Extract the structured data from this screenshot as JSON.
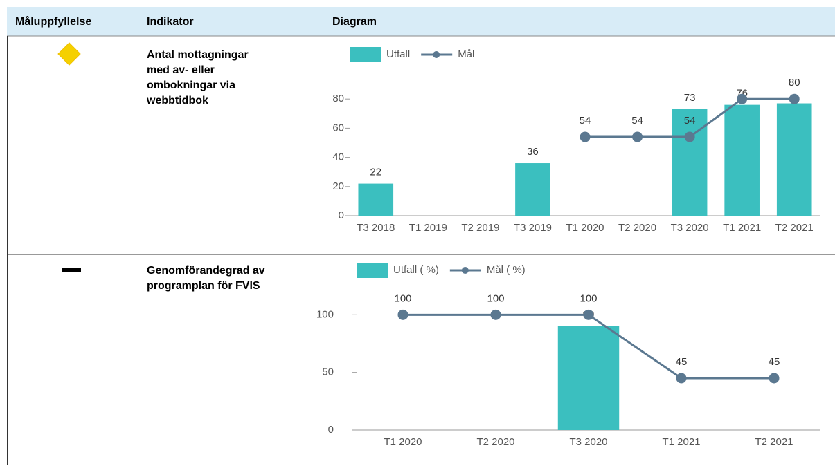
{
  "table": {
    "headers": [
      "Måluppfyllelse",
      "Indikator",
      "Diagram"
    ],
    "rows": [
      {
        "indicator": [
          "Antal mottagningar",
          "med av- eller",
          "ombokningar via",
          "webbtidbok"
        ],
        "chart": {
          "type": "bar",
          "categories": [
            "T3 2018",
            "T1 2019",
            "T2 2019",
            "T3 2019",
            "T1 2020",
            "T2 2020",
            "T3 2020",
            "T1 2021",
            "T2 2021"
          ],
          "series": [
            {
              "name": "Utfall",
              "color": "#3bbfbf",
              "type": "bar",
              "values": [
                22,
                null,
                null,
                36,
                null,
                null,
                73,
                76,
                77
              ],
              "value_labels": [
                "22",
                null,
                null,
                "36",
                null,
                null,
                "73",
                "76",
                null
              ]
            },
            {
              "name": "Mål",
              "color": "#5b7890",
              "type": "line",
              "values": [
                null,
                null,
                null,
                null,
                54,
                54,
                54,
                80,
                80
              ],
              "value_labels": [
                null,
                null,
                null,
                null,
                "54",
                "54",
                "54",
                null,
                "80"
              ]
            }
          ],
          "ylim": [
            0,
            100
          ],
          "yticks": [
            0,
            20,
            40,
            60,
            80
          ]
        }
      },
      {
        "indicator": [
          "Genomförandegrad av",
          "programplan för FVIS"
        ],
        "chart": {
          "type": "bar",
          "categories": [
            "T1 2020",
            "T2 2020",
            "T3 2020",
            "T1 2021",
            "T2 2021"
          ],
          "series": [
            {
              "name": "Utfall ( %)",
              "color": "#3bbfbf",
              "type": "bar",
              "values": [
                null,
                null,
                90,
                null,
                null
              ],
              "value_labels": [
                null,
                null,
                "90",
                null,
                null
              ]
            },
            {
              "name": "Mål ( %)",
              "color": "#5b7890",
              "type": "line",
              "values": [
                100,
                100,
                100,
                45,
                45
              ],
              "value_labels": [
                "100",
                "100",
                "100",
                "45",
                "45"
              ]
            }
          ],
          "ylim": [
            0,
            120
          ],
          "yticks": [
            0,
            50,
            100
          ]
        }
      }
    ]
  }
}
